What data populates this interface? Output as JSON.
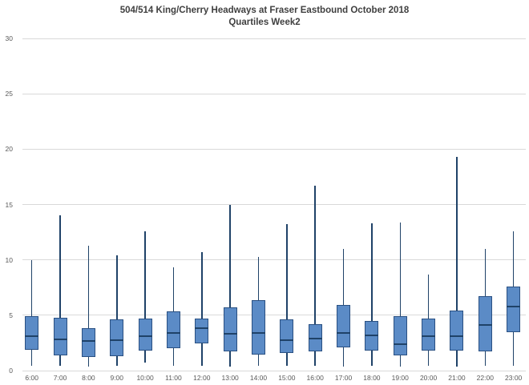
{
  "chart_data": {
    "type": "boxplot",
    "title": "504/514 King/Cherry Headways at Fraser Eastbound October 2018",
    "subtitle": "Quartiles Week2",
    "xlabel": "",
    "ylabel": "",
    "ylim": [
      0,
      30
    ],
    "yticks": [
      0,
      5,
      10,
      15,
      20,
      25,
      30
    ],
    "grid": true,
    "legend": false,
    "categories": [
      "6:00",
      "7:00",
      "8:00",
      "9:00",
      "10:00",
      "11:00",
      "12:00",
      "13:00",
      "14:00",
      "15:00",
      "16:00",
      "17:00",
      "18:00",
      "19:00",
      "20:00",
      "21:00",
      "22:00",
      "23:00"
    ],
    "boxes": [
      {
        "category": "6:00",
        "min": 0.4,
        "q1": 1.9,
        "median": 3.1,
        "q3": 4.9,
        "max": 10.0
      },
      {
        "category": "7:00",
        "min": 0.4,
        "q1": 1.4,
        "median": 2.8,
        "q3": 4.75,
        "max": 14.0
      },
      {
        "category": "8:00",
        "min": 0.35,
        "q1": 1.2,
        "median": 2.7,
        "q3": 3.85,
        "max": 11.3
      },
      {
        "category": "9:00",
        "min": 0.4,
        "q1": 1.3,
        "median": 2.75,
        "q3": 4.6,
        "max": 10.4
      },
      {
        "category": "10:00",
        "min": 0.75,
        "q1": 1.8,
        "median": 3.1,
        "q3": 4.7,
        "max": 12.6
      },
      {
        "category": "11:00",
        "min": 0.4,
        "q1": 2.0,
        "median": 3.4,
        "q3": 5.35,
        "max": 9.3
      },
      {
        "category": "12:00",
        "min": 0.4,
        "q1": 2.45,
        "median": 3.8,
        "q3": 4.7,
        "max": 10.7
      },
      {
        "category": "13:00",
        "min": 0.35,
        "q1": 1.7,
        "median": 3.35,
        "q3": 5.7,
        "max": 15.0
      },
      {
        "category": "14:00",
        "min": 0.4,
        "q1": 1.45,
        "median": 3.4,
        "q3": 6.35,
        "max": 10.3
      },
      {
        "category": "15:00",
        "min": 0.45,
        "q1": 1.6,
        "median": 2.75,
        "q3": 4.6,
        "max": 13.2
      },
      {
        "category": "16:00",
        "min": 0.45,
        "q1": 1.75,
        "median": 2.9,
        "q3": 4.2,
        "max": 16.7
      },
      {
        "category": "17:00",
        "min": 0.35,
        "q1": 2.1,
        "median": 3.4,
        "q3": 5.9,
        "max": 11.0
      },
      {
        "category": "18:00",
        "min": 0.4,
        "q1": 1.8,
        "median": 3.2,
        "q3": 4.5,
        "max": 13.3
      },
      {
        "category": "19:00",
        "min": 0.35,
        "q1": 1.35,
        "median": 2.4,
        "q3": 4.9,
        "max": 13.4
      },
      {
        "category": "20:00",
        "min": 0.4,
        "q1": 1.8,
        "median": 3.1,
        "q3": 4.7,
        "max": 8.7
      },
      {
        "category": "21:00",
        "min": 0.35,
        "q1": 1.8,
        "median": 3.1,
        "q3": 5.4,
        "max": 19.3
      },
      {
        "category": "22:00",
        "min": 0.45,
        "q1": 1.7,
        "median": 4.1,
        "q3": 6.7,
        "max": 11.0
      },
      {
        "category": "23:00",
        "min": 0.45,
        "q1": 3.45,
        "median": 5.8,
        "q3": 7.6,
        "max": 12.6
      }
    ],
    "colors": {
      "box_fill": "#5b8bc6",
      "box_border": "#2a5082",
      "whisker": "#1f4268",
      "median": "#1f4268",
      "gridline": "#d9d9d9",
      "axis_label": "#595959",
      "title": "#3f3f3f",
      "background": "#ffffff"
    }
  }
}
